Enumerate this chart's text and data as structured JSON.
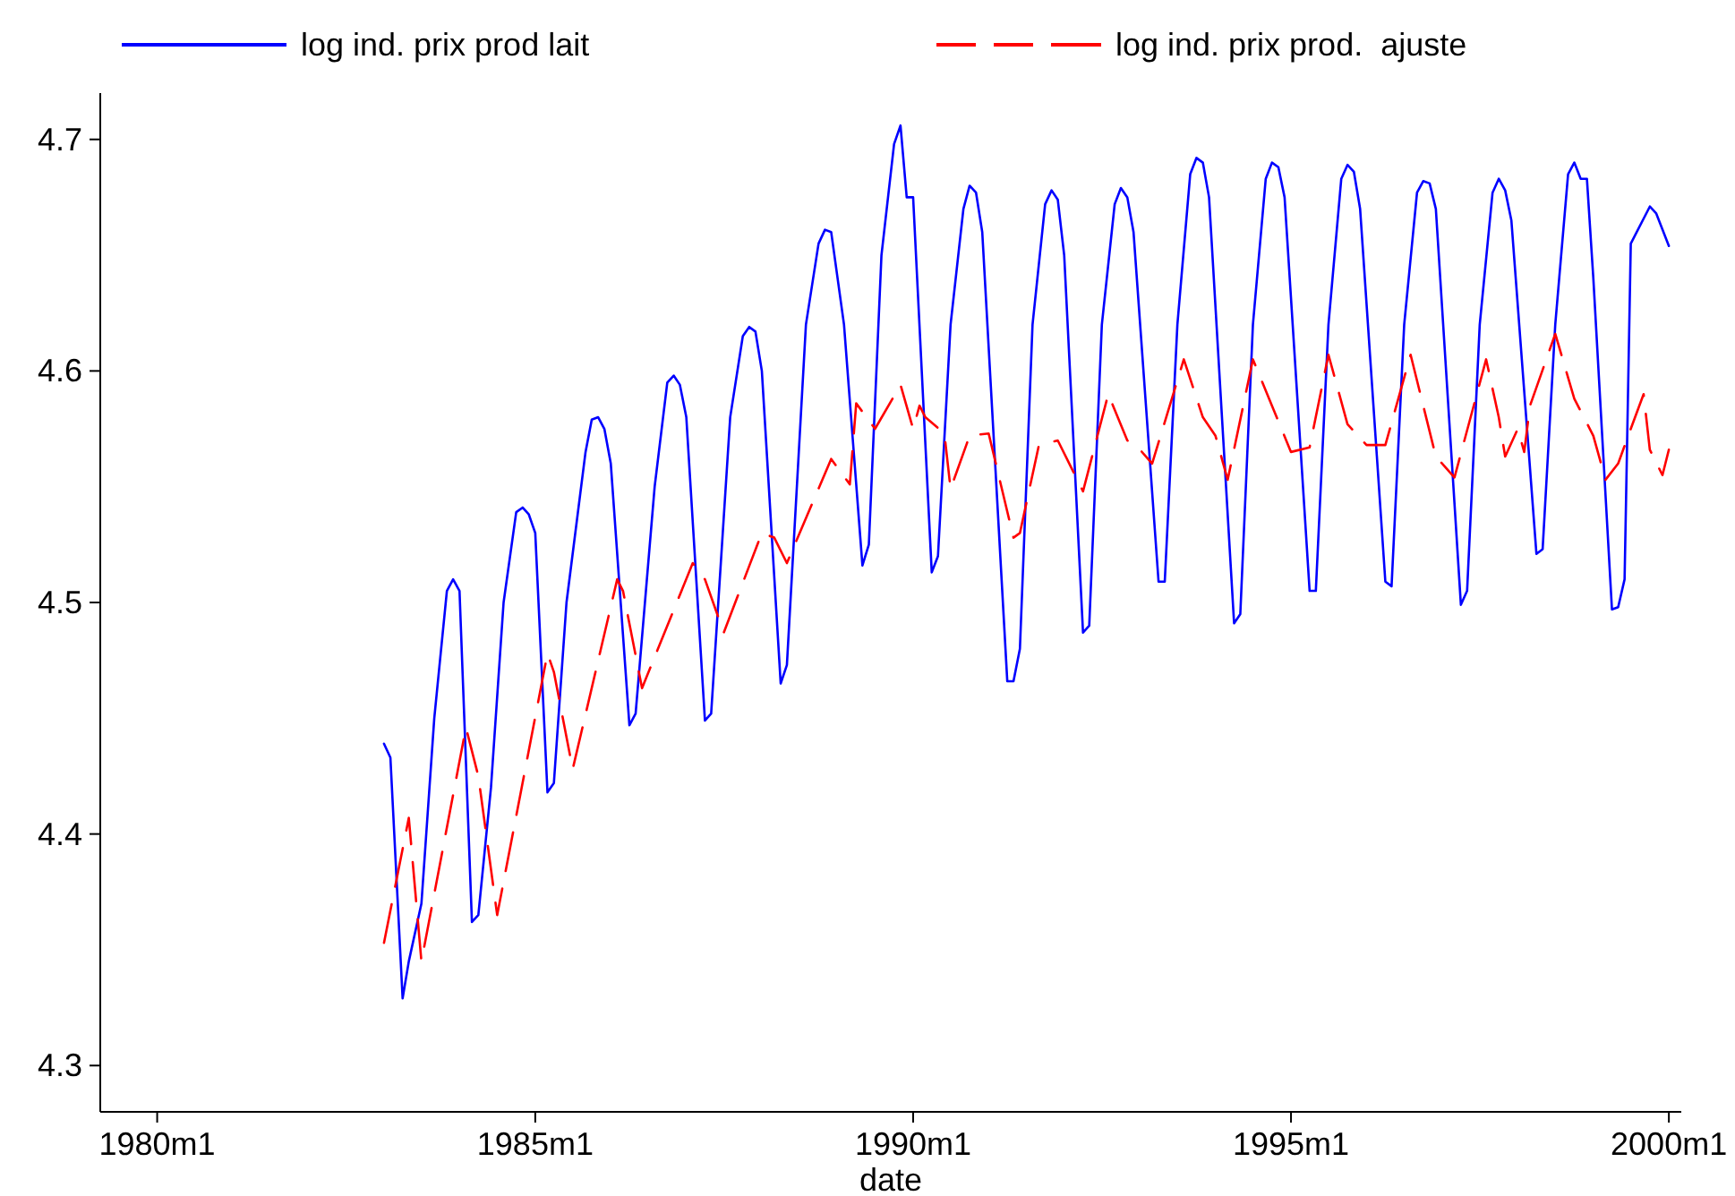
{
  "chart_data": {
    "type": "line",
    "xlabel": "date",
    "legend": "top",
    "grid": false,
    "xlim": [
      "1979-04",
      "2000-03"
    ],
    "ylim": [
      4.28,
      4.72
    ],
    "xticks": [
      {
        "value": "1980-01",
        "label": "1980m1"
      },
      {
        "value": "1985-01",
        "label": "1985m1"
      },
      {
        "value": "1990-01",
        "label": "1990m1"
      },
      {
        "value": "1995-01",
        "label": "1995m1"
      },
      {
        "value": "2000-01",
        "label": "2000m1"
      }
    ],
    "yticks": [
      4.3,
      4.4,
      4.5,
      4.6,
      4.7
    ],
    "series": [
      {
        "name": "log ind. prix prod lait",
        "color": "#0000ff",
        "line_style": "solid",
        "x": [
          "1983-01",
          "1983-02",
          "1983-04",
          "1983-05",
          "1983-07",
          "1983-09",
          "1983-11",
          "1983-12",
          "1984-01",
          "1984-03",
          "1984-04",
          "1984-06",
          "1984-08",
          "1984-10",
          "1984-11",
          "1984-12",
          "1985-01",
          "1985-03",
          "1985-04",
          "1985-06",
          "1985-09",
          "1985-10",
          "1985-11",
          "1985-12",
          "1986-01",
          "1986-04",
          "1986-05",
          "1986-08",
          "1986-10",
          "1986-11",
          "1986-12",
          "1987-01",
          "1987-04",
          "1987-05",
          "1987-08",
          "1987-10",
          "1987-11",
          "1987-12",
          "1988-01",
          "1988-04",
          "1988-05",
          "1988-08",
          "1988-10",
          "1988-11",
          "1988-12",
          "1989-02",
          "1989-05",
          "1989-06",
          "1989-08",
          "1989-10",
          "1989-11",
          "1989-12",
          "1990-01",
          "1990-04",
          "1990-05",
          "1990-07",
          "1990-09",
          "1990-10",
          "1990-11",
          "1990-12",
          "1991-04",
          "1991-05",
          "1991-06",
          "1991-08",
          "1991-10",
          "1991-11",
          "1991-12",
          "1992-01",
          "1992-04",
          "1992-05",
          "1992-07",
          "1992-09",
          "1992-10",
          "1992-11",
          "1992-12",
          "1993-04",
          "1993-05",
          "1993-07",
          "1993-09",
          "1993-10",
          "1993-11",
          "1993-12",
          "1994-04",
          "1994-05",
          "1994-07",
          "1994-09",
          "1994-10",
          "1994-11",
          "1994-12",
          "1995-04",
          "1995-05",
          "1995-07",
          "1995-09",
          "1995-10",
          "1995-11",
          "1995-12",
          "1996-04",
          "1996-05",
          "1996-07",
          "1996-09",
          "1996-10",
          "1996-11",
          "1996-12",
          "1997-04",
          "1997-05",
          "1997-07",
          "1997-09",
          "1997-10",
          "1997-11",
          "1997-12",
          "1998-04",
          "1998-05",
          "1998-07",
          "1998-09",
          "1998-10",
          "1998-11",
          "1998-12",
          "1999-01",
          "1999-04",
          "1999-05",
          "1999-06",
          "1999-07",
          "1999-10",
          "1999-11",
          "2000-01"
        ],
        "values": [
          4.439,
          4.433,
          4.329,
          4.345,
          4.37,
          4.45,
          4.505,
          4.51,
          4.505,
          4.362,
          4.365,
          4.42,
          4.5,
          4.539,
          4.541,
          4.538,
          4.53,
          4.418,
          4.422,
          4.5,
          4.565,
          4.579,
          4.58,
          4.575,
          4.56,
          4.447,
          4.452,
          4.55,
          4.595,
          4.598,
          4.594,
          4.58,
          4.449,
          4.452,
          4.58,
          4.615,
          4.619,
          4.617,
          4.6,
          4.465,
          4.473,
          4.62,
          4.655,
          4.661,
          4.66,
          4.62,
          4.516,
          4.525,
          4.65,
          4.698,
          4.706,
          4.675,
          4.675,
          4.513,
          4.52,
          4.62,
          4.67,
          4.68,
          4.677,
          4.66,
          4.466,
          4.466,
          4.48,
          4.62,
          4.672,
          4.678,
          4.674,
          4.65,
          4.487,
          4.49,
          4.62,
          4.672,
          4.679,
          4.675,
          4.66,
          4.509,
          4.509,
          4.62,
          4.685,
          4.692,
          4.69,
          4.675,
          4.491,
          4.495,
          4.62,
          4.683,
          4.69,
          4.688,
          4.675,
          4.505,
          4.505,
          4.62,
          4.683,
          4.689,
          4.686,
          4.67,
          4.509,
          4.507,
          4.62,
          4.677,
          4.682,
          4.681,
          4.67,
          4.499,
          4.505,
          4.62,
          4.677,
          4.683,
          4.678,
          4.665,
          4.521,
          4.523,
          4.62,
          4.685,
          4.69,
          4.683,
          4.683,
          4.64,
          4.497,
          4.498,
          4.51,
          4.655,
          4.671,
          4.668,
          4.654
        ]
      },
      {
        "name": "log ind. prix prod.  ajuste",
        "color": "#ff0000",
        "line_style": "dashed",
        "x": [
          "1983-01",
          "1983-05",
          "1983-07",
          "1984-02",
          "1984-04",
          "1984-07",
          "1985-03",
          "1985-04",
          "1985-07",
          "1986-02",
          "1986-03",
          "1986-06",
          "1987-02",
          "1987-04",
          "1987-07",
          "1988-01",
          "1988-03",
          "1988-05",
          "1988-12",
          "1989-03",
          "1989-04",
          "1989-07",
          "1989-11",
          "1990-01",
          "1990-02",
          "1990-03",
          "1990-06",
          "1990-07",
          "1990-10",
          "1991-01",
          "1991-05",
          "1991-06",
          "1991-09",
          "1991-12",
          "1992-04",
          "1992-08",
          "1992-11",
          "1993-01",
          "1993-03",
          "1993-08",
          "1993-11",
          "1994-01",
          "1994-03",
          "1994-07",
          "1994-10",
          "1995-01",
          "1995-04",
          "1995-07",
          "1995-10",
          "1996-01",
          "1996-04",
          "1996-08",
          "1996-12",
          "1997-03",
          "1997-08",
          "1997-10",
          "1997-11",
          "1998-01",
          "1998-02",
          "1998-03",
          "1998-07",
          "1998-10",
          "1999-01",
          "1999-03",
          "1999-05",
          "1999-07",
          "1999-09",
          "1999-10",
          "1999-12",
          "2000-01"
        ],
        "values": [
          4.353,
          4.407,
          4.345,
          4.446,
          4.425,
          4.365,
          4.478,
          4.47,
          4.428,
          4.51,
          4.505,
          4.463,
          4.517,
          4.51,
          4.487,
          4.53,
          4.528,
          4.517,
          4.562,
          4.551,
          4.586,
          4.575,
          4.594,
          4.575,
          4.585,
          4.58,
          4.573,
          4.549,
          4.572,
          4.573,
          4.528,
          4.53,
          4.568,
          4.57,
          4.548,
          4.59,
          4.57,
          4.566,
          4.56,
          4.605,
          4.58,
          4.572,
          4.553,
          4.605,
          4.585,
          4.565,
          4.567,
          4.607,
          4.577,
          4.568,
          4.568,
          4.607,
          4.563,
          4.554,
          4.605,
          4.58,
          4.563,
          4.575,
          4.565,
          4.585,
          4.616,
          4.588,
          4.572,
          4.553,
          4.56,
          4.575,
          4.59,
          4.566,
          4.555,
          4.566
        ]
      }
    ]
  }
}
